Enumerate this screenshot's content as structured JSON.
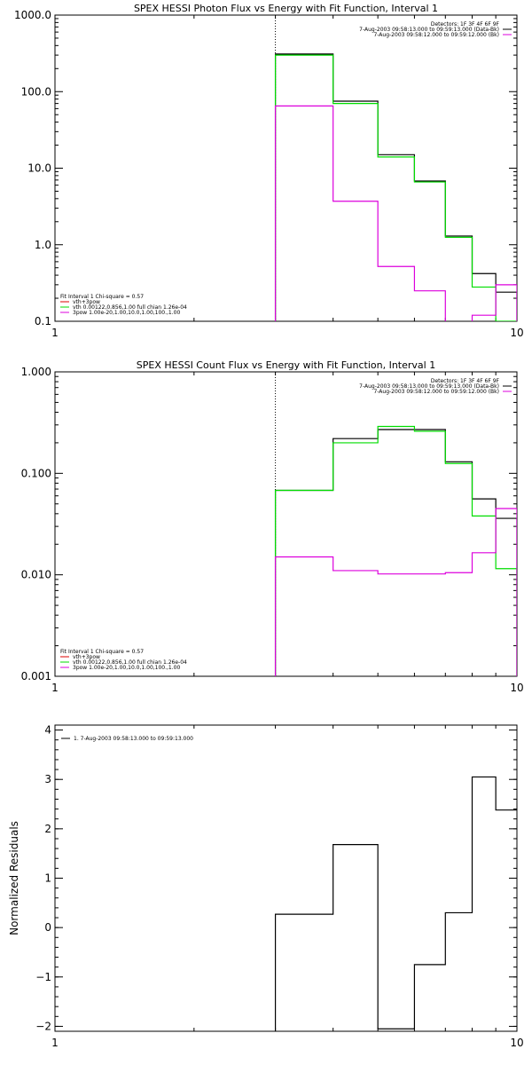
{
  "chart_data": [
    {
      "type": "line",
      "title": "SPEX HESSI Photon Flux vs Energy with Fit Function, Interval 1",
      "xlabel": "",
      "ylabel": "",
      "x_scale": "log",
      "y_scale": "log",
      "xlim": [
        1,
        10
      ],
      "ylim": [
        0.1,
        1000
      ],
      "x_ticks": [
        {
          "value": 1,
          "label": "1"
        },
        {
          "value": 10,
          "label": "10"
        }
      ],
      "y_ticks": [
        {
          "value": 1000,
          "label": "1000.0"
        },
        {
          "value": 100,
          "label": "100.0"
        },
        {
          "value": 10,
          "label": "10.0"
        },
        {
          "value": 1,
          "label": "1.0"
        },
        {
          "value": 0.1,
          "label": "0.1"
        }
      ],
      "vline": 3,
      "bin_edges": [
        3,
        4,
        5,
        6,
        7,
        8,
        9,
        10
      ],
      "series": [
        {
          "color": "#000000",
          "values": [
            310,
            75,
            15,
            6.8,
            1.3,
            0.42,
            0.24
          ]
        },
        {
          "color": "#00dd00",
          "values": [
            300,
            70,
            14,
            6.6,
            1.25,
            0.28,
            0.1
          ]
        },
        {
          "color": "#dd00dd",
          "values": [
            65,
            3.7,
            0.52,
            0.25,
            0.095,
            0.12,
            0.3
          ]
        }
      ],
      "legend_top": [
        {
          "text": "Detectors: 1F 3F 4F 6F 9F",
          "color": ""
        },
        {
          "text": "7-Aug-2003 09:58:13.000 to 09:59:13.000 (Data-Bk)",
          "color": "#000000"
        },
        {
          "text": "7-Aug-2003 09:58:12.000 to 09:59:12.000 (Bk)",
          "color": "#dd00dd"
        }
      ],
      "legend_bottom": [
        {
          "text": "Fit Interval 1    Chi-square = 0.57",
          "color": ""
        },
        {
          "text": "vth+3pow",
          "color": "#dd0000"
        },
        {
          "text": "vth 0.00122,0.856,1.00   full chian 1.26e-04",
          "color": "#00dd00"
        },
        {
          "text": "3pow 1.00e-20,1.00,10.0,1.00,100.,1.00",
          "color": "#dd00dd"
        }
      ]
    },
    {
      "type": "line",
      "title": "SPEX HESSI Count Flux vs Energy with Fit Function, Interval 1",
      "xlabel": "",
      "ylabel": "",
      "x_scale": "log",
      "y_scale": "log",
      "xlim": [
        1,
        10
      ],
      "ylim": [
        0.001,
        1
      ],
      "x_ticks": [
        {
          "value": 1,
          "label": "1"
        },
        {
          "value": 10,
          "label": "10"
        }
      ],
      "y_ticks": [
        {
          "value": 1,
          "label": "1.000"
        },
        {
          "value": 0.1,
          "label": "0.100"
        },
        {
          "value": 0.01,
          "label": "0.010"
        },
        {
          "value": 0.001,
          "label": "0.001"
        }
      ],
      "vline": 3,
      "bin_edges": [
        3,
        4,
        5,
        6,
        7,
        8,
        9,
        10
      ],
      "series": [
        {
          "color": "#000000",
          "values": [
            0.068,
            0.22,
            0.27,
            0.27,
            0.13,
            0.056,
            0.036
          ]
        },
        {
          "color": "#00dd00",
          "values": [
            0.068,
            0.2,
            0.29,
            0.26,
            0.125,
            0.038,
            0.0115
          ]
        },
        {
          "color": "#dd00dd",
          "values": [
            0.015,
            0.011,
            0.0102,
            0.0102,
            0.0105,
            0.0165,
            0.045
          ]
        }
      ],
      "legend_top": [
        {
          "text": "Detectors: 1F 3F 4F 6F 9F",
          "color": ""
        },
        {
          "text": "7-Aug-2003 09:58:13.000 to 09:59:13.000 (Data-Bk)",
          "color": "#000000"
        },
        {
          "text": "7-Aug-2003 09:58:12.000 to 09:59:12.000 (Bk)",
          "color": "#dd00dd"
        }
      ],
      "legend_bottom": [
        {
          "text": "Fit Interval 1    Chi-square = 0.57",
          "color": ""
        },
        {
          "text": "vth+3pow",
          "color": "#dd0000"
        },
        {
          "text": "vth 0.00122,0.856,1.00   full chian 1.26e-04",
          "color": "#00dd00"
        },
        {
          "text": "3pow 1.00e-20,1.00,10.0,1.00,100.,1.00",
          "color": "#dd00dd"
        }
      ]
    },
    {
      "type": "line",
      "title": "",
      "xlabel": "",
      "ylabel": "Normalized Residuals",
      "x_scale": "log",
      "y_scale": "linear",
      "xlim": [
        1,
        10
      ],
      "ylim": [
        -2.1,
        4.1
      ],
      "x_ticks": [
        {
          "value": 1,
          "label": "1"
        },
        {
          "value": 10,
          "label": "10"
        }
      ],
      "y_ticks": [
        {
          "value": 4,
          "label": "4"
        },
        {
          "value": 3,
          "label": "3"
        },
        {
          "value": 2,
          "label": "2"
        },
        {
          "value": 1,
          "label": "1"
        },
        {
          "value": 0,
          "label": "0"
        },
        {
          "value": -1,
          "label": "−1"
        },
        {
          "value": -2,
          "label": "−2"
        }
      ],
      "bin_edges": [
        3,
        4,
        5,
        6,
        7,
        8,
        9,
        10
      ],
      "series": [
        {
          "color": "#000000",
          "values": [
            0.27,
            1.68,
            -2.05,
            -0.75,
            0.3,
            3.05,
            2.38
          ]
        }
      ],
      "legend_top": [
        {
          "text": "1.  7-Aug-2003 09:58:13.000 to 09:59:13.000",
          "color": "#000000"
        }
      ]
    }
  ]
}
